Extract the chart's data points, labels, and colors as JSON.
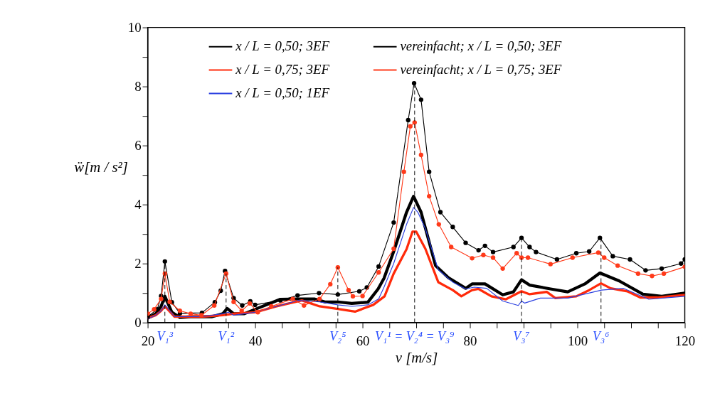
{
  "chart_data": {
    "type": "line",
    "xlabel": "v [m/s]",
    "ylabel": "ẅ[m / s²]",
    "xlim": [
      20,
      120
    ],
    "ylim": [
      0,
      10
    ],
    "xticks": [
      20,
      {
        "value": 25,
        "label": null
      },
      {
        "value": 30,
        "label": null
      },
      {
        "value": 35,
        "label": null
      },
      40,
      {
        "value": 45,
        "label": null
      },
      {
        "value": 50,
        "label": null
      },
      {
        "value": 55,
        "label": null
      },
      60,
      {
        "value": 65,
        "label": null
      },
      {
        "value": 70,
        "label": null
      },
      {
        "value": 75,
        "label": null
      },
      80,
      {
        "value": 85,
        "label": null
      },
      {
        "value": 90,
        "label": null
      },
      {
        "value": 95,
        "label": null
      },
      100,
      {
        "value": 105,
        "label": null
      },
      {
        "value": 110,
        "label": null
      },
      {
        "value": 115,
        "label": null
      },
      120
    ],
    "yticks": [
      0,
      {
        "value": 1,
        "label": null
      },
      2,
      {
        "value": 3,
        "label": null
      },
      4,
      {
        "value": 5,
        "label": null
      },
      6,
      {
        "value": 7,
        "label": null
      },
      8,
      {
        "value": 9,
        "label": null
      },
      10
    ],
    "grid": false,
    "legend": "top",
    "line_style": "solid",
    "series": [
      {
        "name": "x / L = 0,50; 3EF",
        "color": "#000000",
        "marker": "none",
        "x": [
          20,
          21.5,
          22.5,
          23.2,
          24.5,
          26,
          28,
          32,
          34,
          34.8,
          36,
          38,
          40,
          44.7,
          48,
          51,
          53,
          55.4,
          58,
          61,
          62.9,
          64,
          65.8,
          68.2,
          69.5,
          70.9,
          73.6,
          76,
          79.2,
          80.4,
          82.8,
          86.1,
          88.1,
          89.6,
          91.1,
          95,
          98.2,
          101.4,
          104.2,
          107.8,
          112.2,
          115.7,
          120
        ],
        "values": [
          0.15,
          0.3,
          0.55,
          0.89,
          0.35,
          0.17,
          0.2,
          0.2,
          0.3,
          0.48,
          0.3,
          0.3,
          0.45,
          0.79,
          0.8,
          0.8,
          0.7,
          0.7,
          0.65,
          0.69,
          1.14,
          1.5,
          2.41,
          3.74,
          4.28,
          3.74,
          1.93,
          1.52,
          1.16,
          1.31,
          1.31,
          0.94,
          1.04,
          1.45,
          1.27,
          1.14,
          1.04,
          1.31,
          1.68,
          1.41,
          0.96,
          0.89,
          1.0
        ]
      },
      {
        "name": "x / L = 0,75; 3EF",
        "color": "#ff2a0a",
        "marker": "none",
        "x": [
          20,
          21.5,
          22.5,
          23.2,
          25,
          30,
          34,
          36,
          40,
          44,
          48.7,
          52,
          55.4,
          58.6,
          62,
          64.1,
          65.8,
          68.2,
          69.3,
          70,
          71.7,
          74.1,
          76.8,
          78.4,
          80.4,
          81.6,
          84,
          86.7,
          89.6,
          91.1,
          94.3,
          95.9,
          99.8,
          102.2,
          104.4,
          106.2,
          109.3,
          111.7,
          114.9,
          120
        ],
        "values": [
          0.15,
          0.25,
          0.4,
          0.55,
          0.2,
          0.2,
          0.25,
          0.3,
          0.35,
          0.55,
          0.75,
          0.55,
          0.46,
          0.37,
          0.6,
          0.89,
          1.66,
          2.49,
          3.08,
          3.08,
          2.5,
          1.37,
          1.1,
          0.89,
          1.1,
          1.14,
          0.89,
          0.79,
          1.06,
          0.96,
          1.04,
          0.83,
          0.89,
          1.1,
          1.33,
          1.16,
          1.06,
          0.85,
          0.85,
          0.94
        ]
      },
      {
        "name": "x / L = 0,50; 1EF",
        "color": "#2a3fe0",
        "marker": "none",
        "x": [
          20,
          21.5,
          22.5,
          23.2,
          25,
          30,
          34,
          35,
          36,
          38,
          40,
          44,
          48,
          52,
          55.4,
          58,
          61,
          63,
          64,
          65.8,
          68.2,
          69.5,
          70.3,
          71.7,
          74.1,
          76.8,
          79.2,
          80.8,
          83.1,
          86.1,
          89,
          89.6,
          90.2,
          93.1,
          98.2,
          104.5,
          108.6,
          113.3,
          120
        ],
        "values": [
          0.12,
          0.25,
          0.4,
          0.6,
          0.2,
          0.2,
          0.3,
          0.35,
          0.25,
          0.3,
          0.35,
          0.55,
          0.75,
          0.7,
          0.6,
          0.55,
          0.6,
          0.8,
          1.2,
          2.0,
          3.33,
          3.9,
          3.74,
          3.18,
          1.79,
          1.37,
          1.14,
          1.2,
          1.16,
          0.73,
          0.58,
          0.73,
          0.66,
          0.83,
          0.83,
          1.1,
          1.16,
          0.79,
          0.89
        ]
      },
      {
        "name": "vereinfacht; x / L = 0,50; 3EF",
        "color": "#000000",
        "marker": "circle",
        "x": [
          20,
          21.8,
          22.5,
          23.2,
          24.5,
          26,
          30.1,
          32.5,
          33.6,
          34.4,
          36,
          37.6,
          39.1,
          40,
          44.7,
          47.9,
          51.9,
          55.4,
          59.4,
          60.8,
          63,
          65.8,
          68.5,
          69.6,
          70.9,
          72.4,
          74.5,
          76.8,
          79.2,
          81.6,
          82.8,
          84.3,
          88.1,
          89.6,
          91.1,
          92.3,
          96.2,
          99.8,
          102.2,
          104.2,
          106.6,
          109.8,
          112.7,
          115.7,
          119.3,
          120
        ],
        "values": [
          0.2,
          0.45,
          0.9,
          2.07,
          0.69,
          0.31,
          0.33,
          0.69,
          1.08,
          1.75,
          0.83,
          0.58,
          0.72,
          0.6,
          0.75,
          0.92,
          1.0,
          0.95,
          1.06,
          1.19,
          1.9,
          3.39,
          6.86,
          8.11,
          7.55,
          5.11,
          3.74,
          3.24,
          2.7,
          2.45,
          2.6,
          2.39,
          2.56,
          2.87,
          2.56,
          2.39,
          2.14,
          2.35,
          2.41,
          2.87,
          2.25,
          2.14,
          1.77,
          1.83,
          2.0,
          2.14
        ]
      },
      {
        "name": "vereinfacht; x / L = 0,75; 3EF",
        "color": "#ff3a1a",
        "marker": "circle",
        "x": [
          20,
          21.2,
          22.5,
          23.2,
          24.1,
          26,
          28,
          30,
          32.4,
          34.6,
          36,
          37.5,
          39,
          40.5,
          43,
          47,
          49.1,
          52,
          54,
          55.4,
          57.4,
          58.2,
          60,
          63,
          65.8,
          67.7,
          68.9,
          69.7,
          70.9,
          72.4,
          74.2,
          76.5,
          80.4,
          82.5,
          84.3,
          86.1,
          88.7,
          89.6,
          90.8,
          95,
          99.1,
          103.9,
          105,
          107.5,
          111.3,
          113.9,
          116.1,
          120
        ],
        "values": [
          0.3,
          0.45,
          0.8,
          1.66,
          0.7,
          0.4,
          0.3,
          0.25,
          0.58,
          1.66,
          0.7,
          0.4,
          0.65,
          0.35,
          0.55,
          0.8,
          0.58,
          0.8,
          1.3,
          1.87,
          1.1,
          0.89,
          0.9,
          1.7,
          2.5,
          5.11,
          6.65,
          6.78,
          5.68,
          4.28,
          3.33,
          2.56,
          2.18,
          2.29,
          2.2,
          1.83,
          2.35,
          2.2,
          2.2,
          1.98,
          2.2,
          2.37,
          2.2,
          1.93,
          1.66,
          1.58,
          1.66,
          1.89
        ]
      }
    ],
    "ref_lines": [
      {
        "axis": "x",
        "value": 23.2,
        "label": "V₁³",
        "color": "#000000",
        "line_style": "dashed"
      },
      {
        "axis": "x",
        "value": 34.6,
        "label": "V₁²",
        "color": "#000000",
        "line_style": "dashed"
      },
      {
        "axis": "x",
        "value": 55.4,
        "label": "V₂⁵",
        "color": "#000000",
        "line_style": "dashed"
      },
      {
        "axis": "x",
        "value": 69.7,
        "label": "V₁¹ = V₂⁴ = V₃⁹",
        "color": "#000000",
        "line_style": "dashed"
      },
      {
        "axis": "x",
        "value": 89.6,
        "label": "V₃⁷",
        "color": "#000000",
        "line_style": "dashed"
      },
      {
        "axis": "x",
        "value": 104.4,
        "label": "V₃⁶",
        "color": "#000000",
        "line_style": "dashed"
      }
    ]
  }
}
